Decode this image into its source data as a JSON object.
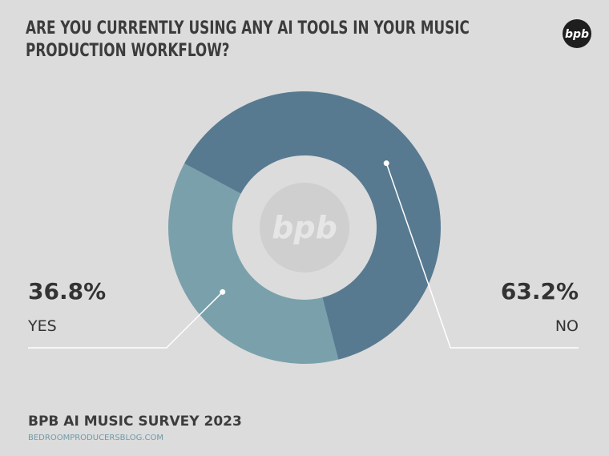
{
  "chart_data": {
    "type": "donut",
    "title": "ARE YOU CURRENTLY USING ANY AI TOOLS IN YOUR MUSIC PRODUCTION WORKFLOW?",
    "logo": "bpb",
    "categories": [
      "YES",
      "NO"
    ],
    "values": [
      36.8,
      63.2
    ],
    "value_labels": [
      "36.8%",
      "63.2%"
    ],
    "colors": [
      "#7aa1ab",
      "#587a91"
    ],
    "footer_title": "BPB AI MUSIC SURVEY 2023",
    "footer_url": "BEDROOMPRODUCERSBLOG.COM"
  }
}
